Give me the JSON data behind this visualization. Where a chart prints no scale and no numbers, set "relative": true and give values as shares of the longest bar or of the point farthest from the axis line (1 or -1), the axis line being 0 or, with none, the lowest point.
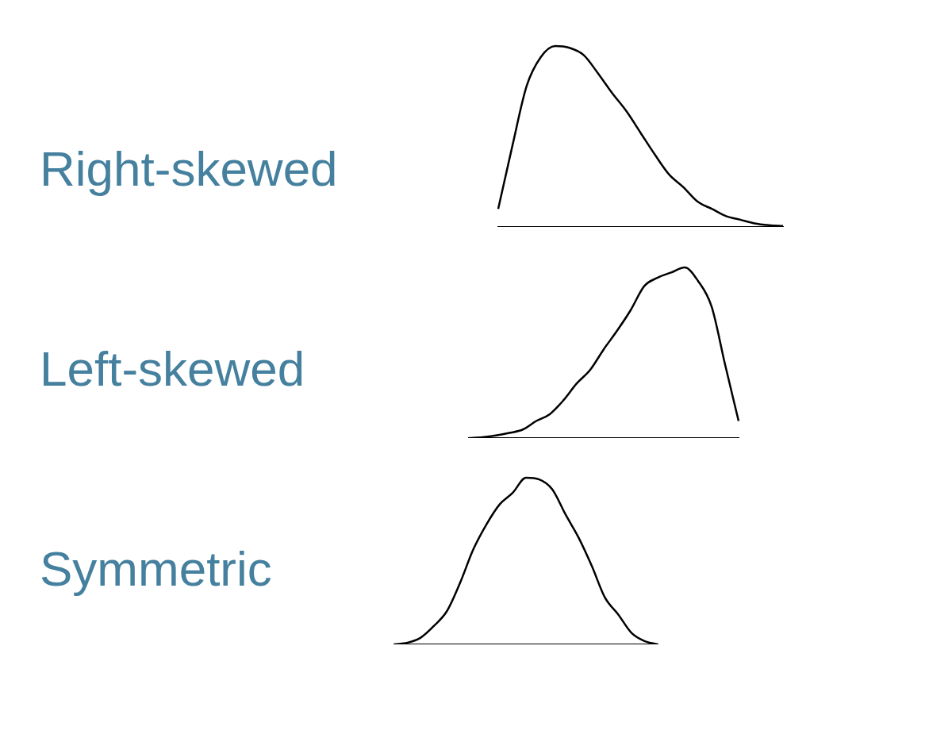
{
  "chart_data": [
    {
      "type": "line",
      "title": "Right-skewed",
      "relative": true,
      "color": "#000000",
      "categories": [
        null,
        null,
        null,
        null,
        null,
        null,
        null,
        null,
        null,
        null,
        null,
        null,
        null,
        null,
        null,
        null,
        null,
        null,
        null,
        null,
        null
      ],
      "values": [
        0.1,
        0.45,
        0.78,
        0.94,
        1,
        0.99,
        0.95,
        0.85,
        0.74,
        0.64,
        0.52,
        0.4,
        0.29,
        0.22,
        0.14,
        0.1,
        0.06,
        0.04,
        0.02,
        0.01,
        0.005
      ]
    },
    {
      "type": "line",
      "title": "Left-skewed",
      "relative": true,
      "color": "#000000",
      "categories": [
        null,
        null,
        null,
        null,
        null,
        null,
        null,
        null,
        null,
        null,
        null,
        null,
        null,
        null,
        null,
        null,
        null,
        null,
        null,
        null,
        null
      ],
      "values": [
        0,
        0.005,
        0.015,
        0.03,
        0.05,
        0.1,
        0.14,
        0.22,
        0.32,
        0.4,
        0.52,
        0.63,
        0.75,
        0.89,
        0.94,
        0.97,
        1,
        0.92,
        0.77,
        0.43,
        0.1
      ]
    },
    {
      "type": "line",
      "title": "Symmetric",
      "relative": true,
      "color": "#000000",
      "categories": [
        null,
        null,
        null,
        null,
        null,
        null,
        null,
        null,
        null,
        null,
        null,
        null,
        null,
        null,
        null,
        null,
        null,
        null,
        null,
        null,
        null
      ],
      "values": [
        0,
        0.01,
        0.04,
        0.11,
        0.2,
        0.37,
        0.57,
        0.72,
        0.84,
        0.91,
        1,
        0.99,
        0.93,
        0.78,
        0.64,
        0.47,
        0.28,
        0.18,
        0.07,
        0.02,
        0
      ]
    }
  ]
}
